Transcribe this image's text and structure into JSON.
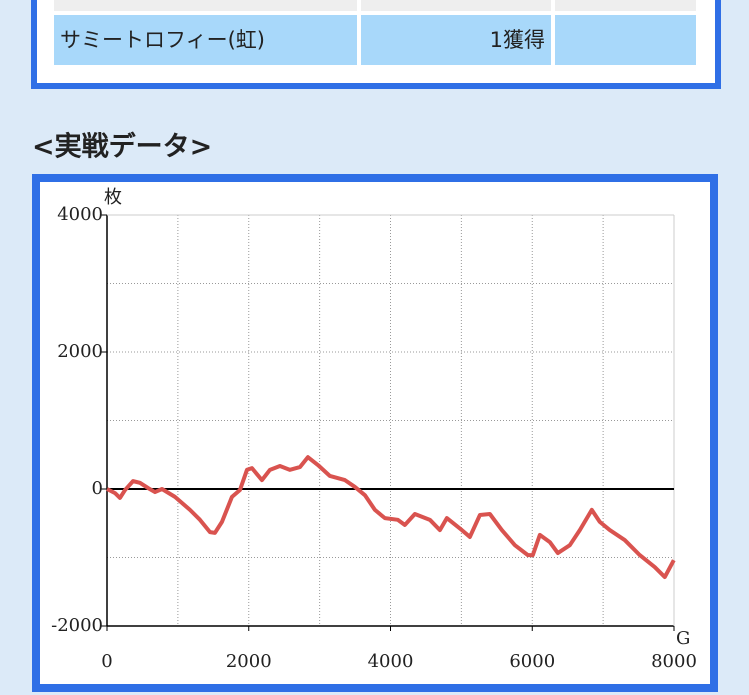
{
  "table": {
    "rows": [
      [
        "サミートロフィー(虹)",
        "1獲得"
      ]
    ]
  },
  "heading": "<実戦データ>",
  "chart_data": {
    "type": "line",
    "y_label": "枚",
    "x_label": "G",
    "xlim": [
      0,
      8000
    ],
    "ylim": [
      -2000,
      4000
    ],
    "xticks": [
      0,
      2000,
      4000,
      6000,
      8000
    ],
    "yticks": [
      -2000,
      0,
      2000,
      4000
    ],
    "grid": true,
    "x": [
      0,
      113,
      183,
      254,
      367,
      465,
      578,
      677,
      776,
      959,
      1171,
      1312,
      1453,
      1523,
      1622,
      1763,
      1876,
      1975,
      2045,
      2186,
      2299,
      2440,
      2581,
      2722,
      2835,
      2976,
      3145,
      3357,
      3498,
      3639,
      3780,
      3921,
      4104,
      4203,
      4344,
      4556,
      4697,
      4795,
      5007,
      5120,
      5261,
      5402,
      5571,
      5755,
      5938,
      6008,
      6107,
      6248,
      6361,
      6530,
      6671,
      6840,
      6953,
      7094,
      7305,
      7517,
      7728,
      7870,
      7997
    ],
    "series": [
      {
        "color": "#d9534f",
        "values": [
          0,
          -60,
          -130,
          -15,
          115,
          90,
          15,
          -45,
          0,
          -115,
          -305,
          -450,
          -630,
          -640,
          -480,
          -115,
          -15,
          280,
          305,
          130,
          280,
          335,
          280,
          320,
          465,
          350,
          190,
          130,
          30,
          -90,
          -305,
          -425,
          -450,
          -525,
          -365,
          -450,
          -600,
          -425,
          -600,
          -700,
          -380,
          -365,
          -600,
          -820,
          -965,
          -965,
          -670,
          -775,
          -935,
          -820,
          -600,
          -305,
          -480,
          -600,
          -745,
          -965,
          -1140,
          -1285,
          -1040
        ]
      }
    ]
  }
}
